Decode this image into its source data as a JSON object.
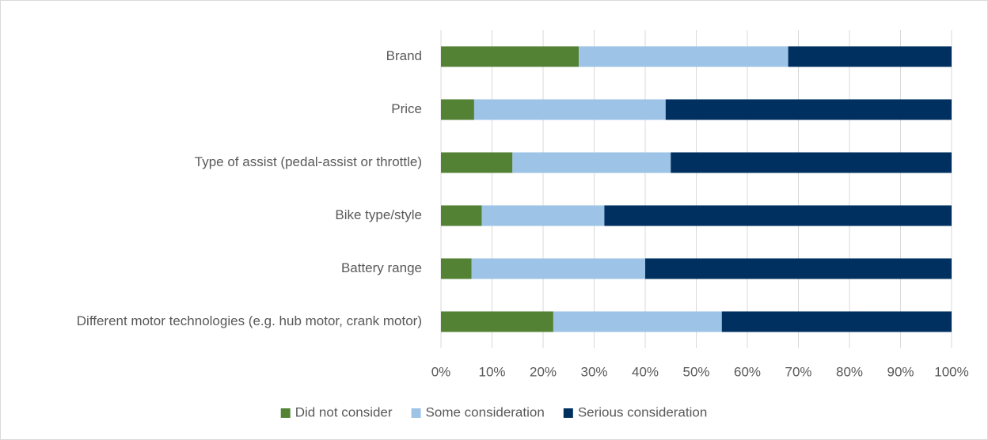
{
  "chart_data": {
    "type": "stacked_barh",
    "categories": [
      "Brand",
      "Price",
      "Type of assist (pedal-assist or throttle)",
      "Bike type/style",
      "Battery range",
      "Different motor technologies (e.g. hub motor, crank motor)"
    ],
    "series": [
      {
        "name": "Did not consider",
        "color": "#548235",
        "values": [
          27,
          6.5,
          14,
          8,
          6,
          22
        ]
      },
      {
        "name": "Some consideration",
        "color": "#9dc3e6",
        "values": [
          41,
          37.5,
          31,
          24,
          34,
          33
        ]
      },
      {
        "name": "Serious consideration",
        "color": "#003060",
        "values": [
          32,
          56,
          55,
          68,
          60,
          45
        ]
      }
    ],
    "xlim": [
      0,
      100
    ],
    "xticks": [
      {
        "value": 0,
        "label": "0%"
      },
      {
        "value": 10,
        "label": "10%"
      },
      {
        "value": 20,
        "label": "20%"
      },
      {
        "value": 30,
        "label": "30%"
      },
      {
        "value": 40,
        "label": "40%"
      },
      {
        "value": 50,
        "label": "50%"
      },
      {
        "value": 60,
        "label": "60%"
      },
      {
        "value": 70,
        "label": "70%"
      },
      {
        "value": 80,
        "label": "80%"
      },
      {
        "value": 90,
        "label": "90%"
      },
      {
        "value": 100,
        "label": "100%"
      }
    ],
    "grid": true,
    "legend": "bottom"
  }
}
